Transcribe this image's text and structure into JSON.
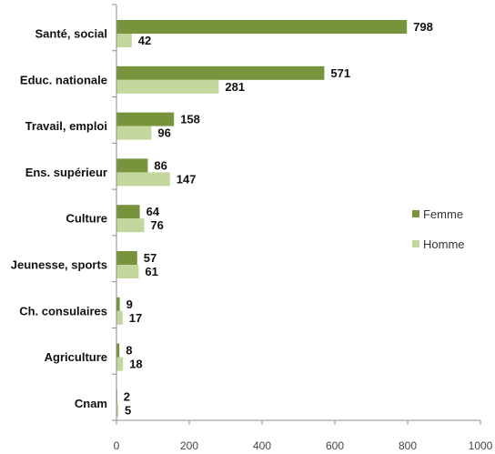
{
  "chart_data": {
    "type": "bar",
    "orientation": "horizontal",
    "categories": [
      "Santé, social",
      "Educ. nationale",
      "Travail, emploi",
      "Ens. supérieur",
      "Culture",
      "Jeunesse, sports",
      "Ch. consulaires",
      "Agriculture",
      "Cnam"
    ],
    "series": [
      {
        "name": "Femme",
        "values": [
          798,
          571,
          158,
          86,
          64,
          57,
          9,
          8,
          2
        ],
        "color": "#77933C"
      },
      {
        "name": "Homme",
        "values": [
          42,
          281,
          96,
          147,
          76,
          61,
          17,
          18,
          5
        ],
        "color": "#C3D69B"
      }
    ],
    "xlim": [
      0,
      1000
    ],
    "xticks": [
      0,
      200,
      400,
      600,
      800,
      1000
    ],
    "xlabel": "",
    "ylabel": "",
    "title": "",
    "grid": false,
    "legend": {
      "position": "right",
      "entries": [
        "Femme",
        "Homme"
      ]
    },
    "data_labels": true
  }
}
